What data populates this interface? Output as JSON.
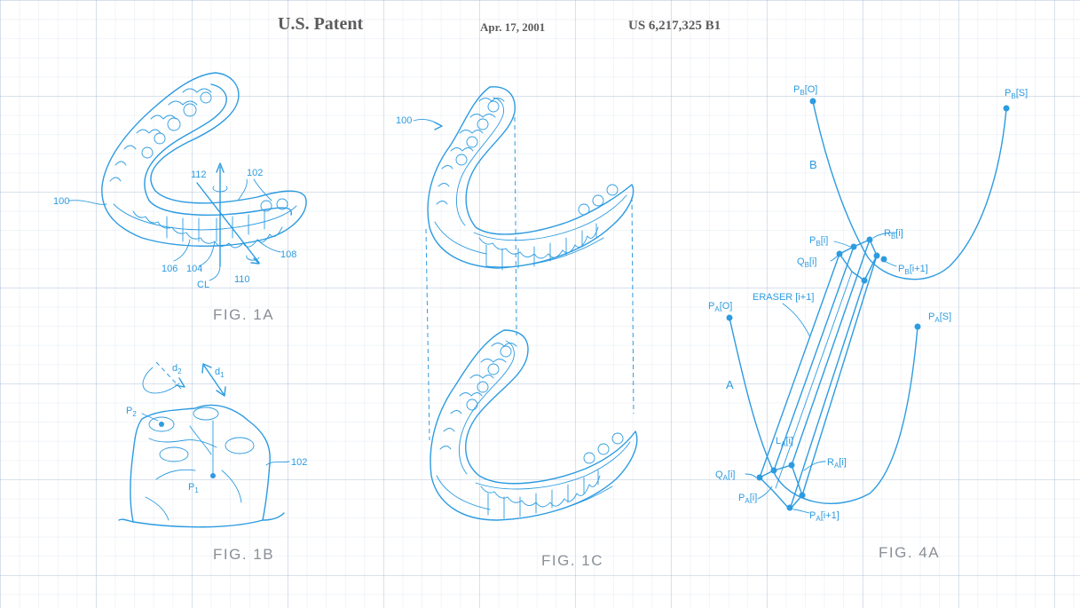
{
  "header": {
    "left": "U.S. Patent",
    "middle": "Apr. 17, 2001",
    "right": "US 6,217,325 B1"
  },
  "colors": {
    "line": "#2d9be0",
    "caption": "#8a8f96",
    "header": "#5c5c5c"
  },
  "fig1a": {
    "caption": "FIG. 1A",
    "labels": {
      "l100": "100",
      "l112": "112",
      "l102": "102",
      "l106": "106",
      "l104": "104",
      "l108": "108",
      "lcl": "CL",
      "l110": "110"
    }
  },
  "fig1b": {
    "caption": "FIG. 1B",
    "labels": {
      "d2": "d",
      "d2sub": "2",
      "d1": "d",
      "d1sub": "1",
      "p2": "P",
      "p2sub": "2",
      "p1": "P",
      "p1sub": "1",
      "l102": "102"
    }
  },
  "fig1c": {
    "caption": "FIG. 1C",
    "labels": {
      "l100": "100"
    }
  },
  "fig4a": {
    "caption": "FIG. 4A",
    "labels": {
      "pb0": "P",
      "pb0sub": "B",
      "pb0idx": "[O]",
      "pbs": "P",
      "pbssub": "B",
      "pbsidx": "[S]",
      "b": "B",
      "a": "A",
      "pbi": "P",
      "pbisub": "B",
      "pbiidx": "[i]",
      "rbi": "R",
      "rbisub": "B",
      "rbiidx": "[i]",
      "qbi": "Q",
      "qbisub": "B",
      "qbiidx": "[i]",
      "pbi1": "P",
      "pbi1sub": "B",
      "pbi1idx": "[i+1]",
      "eraser": "ERASER [i+1]",
      "pa0": "P",
      "pa0sub": "A",
      "pa0idx": "[O]",
      "pas": "P",
      "passub": "A",
      "pasidx": "[S]",
      "lai": "L",
      "laisub": "A",
      "laiidx": "[i]",
      "rai": "R",
      "raisub": "A",
      "raiidx": "[i]",
      "qai": "Q",
      "qaisub": "A",
      "qaiidx": "[i]",
      "pai": "P",
      "paisub": "A",
      "paiidx": "[i]",
      "pai1": "P",
      "pai1sub": "A",
      "pai1idx": "[i+1]"
    }
  }
}
